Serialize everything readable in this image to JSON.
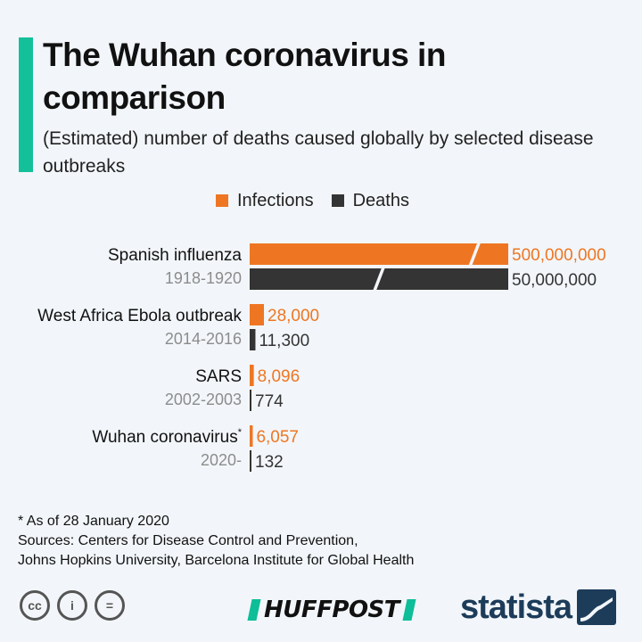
{
  "header": {
    "title": "The Wuhan coronavirus in comparison",
    "subtitle": "(Estimated) number of deaths caused globally by selected disease outbreaks"
  },
  "colors": {
    "accent": "#14c09a",
    "infections": "#ee7623",
    "deaths": "#343434",
    "period": "#8c8c8c"
  },
  "chart_data": {
    "type": "bar",
    "orientation": "horizontal",
    "x_scale": "broken",
    "categories": [
      "Spanish influenza",
      "West Africa Ebola outbreak",
      "SARS",
      "Wuhan coronavirus"
    ],
    "periods": [
      "1918-1920",
      "2014-2016",
      "2002-2003",
      "2020-"
    ],
    "category_markers": [
      "",
      "",
      "",
      "*"
    ],
    "series": [
      {
        "name": "Infections",
        "values": [
          500000000,
          28000,
          8096,
          6057
        ],
        "labels": [
          "500,000,000",
          "28,000",
          "8,096",
          "6,057"
        ]
      },
      {
        "name": "Deaths",
        "values": [
          50000000,
          11300,
          774,
          132
        ],
        "labels": [
          "50,000,000",
          "11,300",
          "774",
          "132"
        ]
      }
    ],
    "axis_break": [
      true,
      false,
      false,
      false
    ]
  },
  "footer": {
    "footnote": "* As of 28 January 2020",
    "sources_line1": "Sources: Centers for Disease Control and Prevention,",
    "sources_line2": "Johns Hopkins University, Barcelona Institute for Global Health",
    "cc_icons": [
      "creative-commons-icon",
      "attribution-icon",
      "no-derivatives-icon"
    ],
    "cc_glyphs": [
      "cc",
      "i",
      "="
    ],
    "huffpost_logo": "HUFFPOST",
    "statista_logo": "statista"
  }
}
